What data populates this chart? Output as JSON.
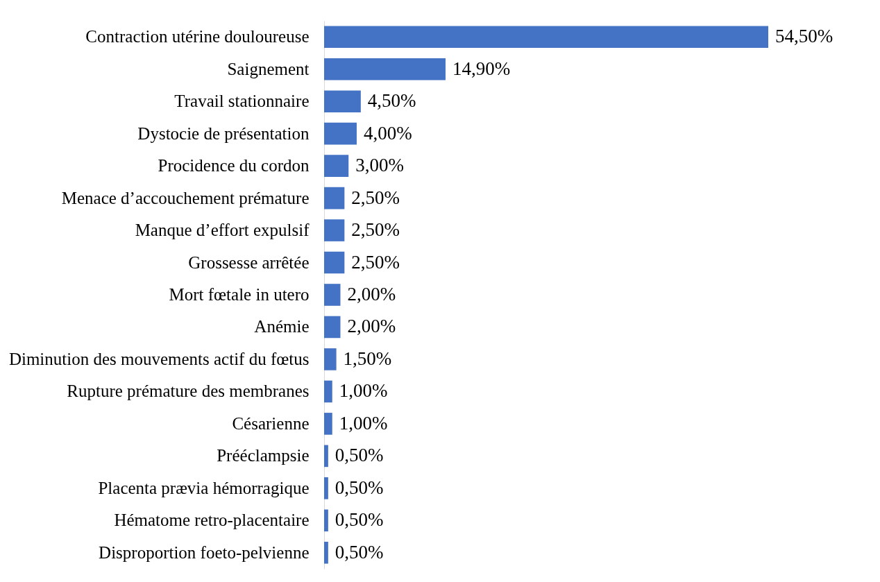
{
  "chart_data": {
    "type": "bar",
    "orientation": "horizontal",
    "color": "#4472c4",
    "categories": [
      "Contraction utérine douloureuse",
      "Saignement",
      "Travail stationnaire",
      "Dystocie de présentation",
      "Procidence du cordon",
      "Menace d’accouchement prémature",
      "Manque d’effort expulsif",
      "Grossesse arrêtée",
      "Mort fœtale in utero",
      "Anémie",
      "Diminution des mouvements actif du fœtus",
      "Rupture prémature des membranes",
      "Césarienne",
      "Prééclampsie",
      "Placenta prævia hémorragique",
      "Hématome retro-placentaire",
      "Disproportion foeto-pelvienne"
    ],
    "values": [
      54.5,
      14.9,
      4.5,
      4.0,
      3.0,
      2.5,
      2.5,
      2.5,
      2.0,
      2.0,
      1.5,
      1.0,
      1.0,
      0.5,
      0.5,
      0.5,
      0.5
    ],
    "value_labels": [
      "54,50%",
      "14,90%",
      "4,50%",
      "4,00%",
      "3,00%",
      "2,50%",
      "2,50%",
      "2,50%",
      "2,00%",
      "2,00%",
      "1,50%",
      "1,00%",
      "1,00%",
      "0,50%",
      "0,50%",
      "0,50%",
      "0,50%"
    ]
  }
}
